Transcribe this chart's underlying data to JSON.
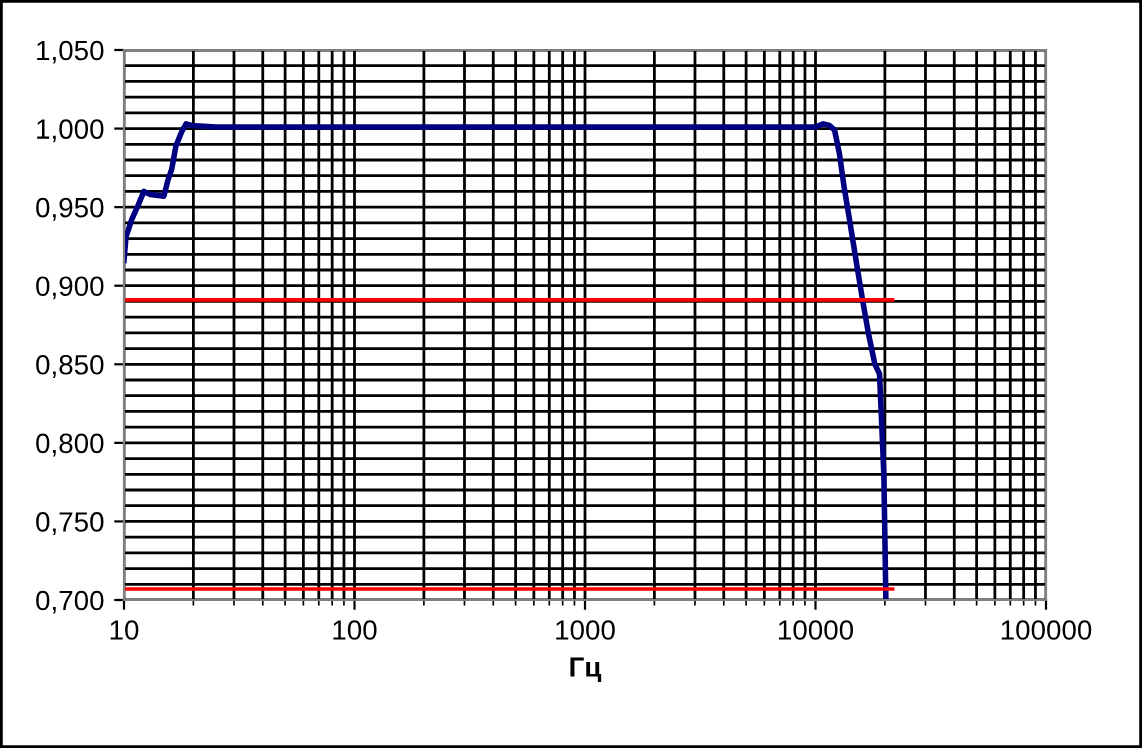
{
  "chart_data": {
    "type": "line",
    "xlabel": "Гц",
    "log": "x",
    "series": [
      {
        "color": "#000080",
        "x": [
          10,
          10.2,
          10.8,
          11.5,
          12.2,
          13,
          14.9,
          15.5,
          16.1,
          16.8,
          17.8,
          18.6,
          19.7,
          25,
          10000,
          10800,
          11500,
          12100,
          12700,
          13300,
          14050,
          15000,
          16000,
          17000,
          18100,
          18950,
          19300,
          19800,
          20200
        ],
        "values": [
          0.916,
          0.931,
          0.942,
          0.951,
          0.96,
          0.958,
          0.957,
          0.967,
          0.974,
          0.989,
          0.998,
          1.003,
          1.002,
          1.001,
          1.001,
          1.003,
          1.002,
          0.999,
          0.984,
          0.963,
          0.942,
          0.916,
          0.891,
          0.869,
          0.85,
          0.844,
          0.818,
          0.779,
          0.7
        ]
      },
      {
        "color": "#ff0000",
        "x": [
          10,
          21600
        ],
        "values": [
          0.891,
          0.891
        ]
      },
      {
        "color": "#ff0000",
        "x": [
          10,
          21600
        ],
        "values": [
          0.707,
          0.707
        ]
      }
    ],
    "xlim": [
      10,
      100000
    ],
    "xticks": [
      10,
      100,
      1000,
      10000,
      100000
    ],
    "ylim": [
      0.7,
      1.05
    ],
    "yticks": [
      {
        "value": 0.7,
        "label": "0,700"
      },
      {
        "value": 0.75,
        "label": "0,750"
      },
      {
        "value": 0.8,
        "label": "0,800"
      },
      {
        "value": 0.85,
        "label": "0,850"
      },
      {
        "value": 0.9,
        "label": "0,900"
      },
      {
        "value": 0.95,
        "label": "0,950"
      },
      {
        "value": 1.0,
        "label": "1,000"
      },
      {
        "value": 1.05,
        "label": "1,050"
      }
    ],
    "grid": true,
    "legend": false
  }
}
